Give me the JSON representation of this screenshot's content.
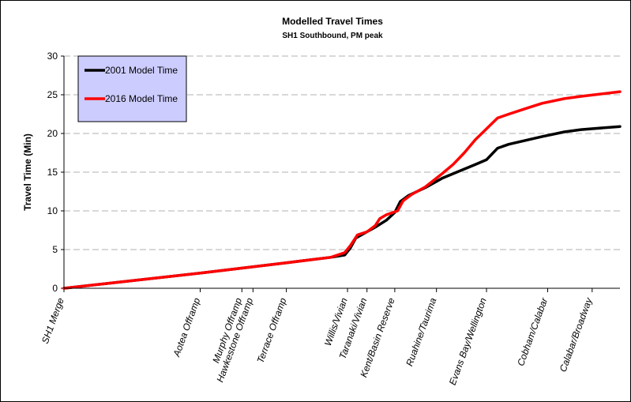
{
  "chart_data": {
    "type": "line",
    "title": "Modelled Travel Times",
    "subtitle": "SH1 Southbound, PM peak",
    "xlabel": "",
    "ylabel": "Travel Time (Min)",
    "ylim": [
      0,
      30
    ],
    "yticks": [
      0,
      5,
      10,
      15,
      20,
      25,
      30
    ],
    "grid": "horizontal dashed",
    "legend_position": "top-left",
    "categories": [
      "SH1 Merge",
      "Aotea Offramp",
      "Murphy Offramp",
      "Hawkestone Offramp",
      "Terrace Offramp",
      "Willis/Vivian",
      "Taranaki/Vivian",
      "Kent/Basin Reserve",
      "Ruahine/Taurima",
      "Evans Bay/Wellington",
      "Cobham/Calabar",
      "Calabar/Broadway"
    ],
    "x_range": [
      0,
      100
    ],
    "category_positions": [
      0,
      24.5,
      32,
      34,
      40,
      51,
      54.5,
      59.5,
      67,
      76,
      87,
      95
    ],
    "series": [
      {
        "name": "2001 Model Time",
        "color": "#000000",
        "points": [
          [
            0,
            0
          ],
          [
            7.5,
            0.6
          ],
          [
            25,
            2.0
          ],
          [
            40,
            3.3
          ],
          [
            48,
            4.0
          ],
          [
            50.5,
            4.3
          ],
          [
            51.5,
            5.2
          ],
          [
            52.5,
            6.5
          ],
          [
            54.5,
            7.3
          ],
          [
            56,
            7.9
          ],
          [
            58,
            8.8
          ],
          [
            59.5,
            9.8
          ],
          [
            60.5,
            11.2
          ],
          [
            62,
            12.0
          ],
          [
            65,
            13.0
          ],
          [
            68,
            14.2
          ],
          [
            71,
            15.1
          ],
          [
            74,
            16.0
          ],
          [
            76,
            16.6
          ],
          [
            78,
            18.1
          ],
          [
            80,
            18.6
          ],
          [
            83,
            19.1
          ],
          [
            86,
            19.6
          ],
          [
            90,
            20.2
          ],
          [
            93,
            20.5
          ],
          [
            100,
            20.9
          ]
        ]
      },
      {
        "name": "2016 Model Time",
        "color": "#ff0000",
        "points": [
          [
            0,
            0
          ],
          [
            7.5,
            0.6
          ],
          [
            25,
            2.0
          ],
          [
            40,
            3.3
          ],
          [
            48,
            4.0
          ],
          [
            50.5,
            4.6
          ],
          [
            51.5,
            5.5
          ],
          [
            52.8,
            6.9
          ],
          [
            54.5,
            7.3
          ],
          [
            56,
            8.1
          ],
          [
            56.8,
            9.0
          ],
          [
            58,
            9.5
          ],
          [
            60,
            10.0
          ],
          [
            61,
            11.3
          ],
          [
            62.5,
            12.1
          ],
          [
            65,
            13.1
          ],
          [
            68,
            14.8
          ],
          [
            70,
            16.0
          ],
          [
            72,
            17.5
          ],
          [
            74,
            19.2
          ],
          [
            76,
            20.6
          ],
          [
            78,
            22.0
          ],
          [
            80,
            22.5
          ],
          [
            83,
            23.2
          ],
          [
            86,
            23.9
          ],
          [
            90,
            24.5
          ],
          [
            93,
            24.8
          ],
          [
            100,
            25.4
          ]
        ]
      }
    ]
  }
}
